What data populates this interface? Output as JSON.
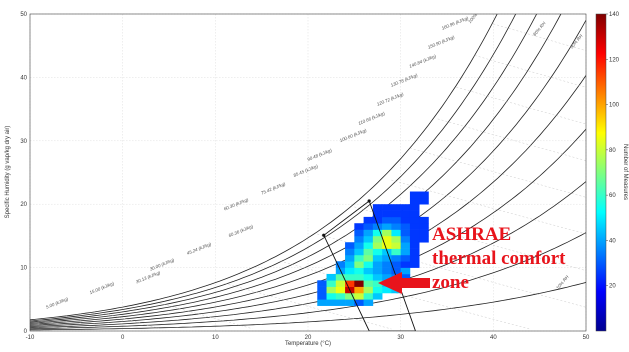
{
  "chart_data": {
    "type": "heatmap",
    "title": "",
    "xlabel": "Temperature (°C)",
    "ylabel": "Specific Humidity (g vap/kg dry air)",
    "xlim": [
      -10,
      50
    ],
    "ylim": [
      0,
      50
    ],
    "x_ticks": [
      "-10",
      "0",
      "10",
      "20",
      "30",
      "40",
      "50"
    ],
    "y_ticks": [
      "0",
      "10",
      "20",
      "30",
      "40",
      "50"
    ],
    "grid": true,
    "colorbar": {
      "label": "Number of Measures",
      "range": [
        0,
        140
      ],
      "ticks": [
        "20",
        "40",
        "60",
        "80",
        "100",
        "120",
        "140"
      ],
      "colormap": "jet"
    },
    "rh_curves_percent": [
      10,
      20,
      30,
      40,
      50,
      60,
      70,
      80,
      90,
      100
    ],
    "enthalpy_labels": [
      "5.00 (kJ/kg)",
      "15.00 (kJ/kg)",
      "30.13 (kJ/kg)",
      "30.00 (kJ/kg)",
      "45.24 (kJ/kg)",
      "60.30 (kJ/kg)",
      "60.36 (kJ/kg)",
      "75.42 (kJ/kg)",
      "85.45 (kJ/kg)",
      "90.48 (kJ/kg)",
      "100.60 (kJ/kg)",
      "110.66 (kJ/kg)",
      "120.72 (kJ/kg)",
      "130.78 (kJ/kg)",
      "140.84 (kJ/kg)",
      "150.90 (kJ/kg)",
      "160.96 (kJ/kg)"
    ],
    "rh_labels": [
      "100% RH",
      "80% RH",
      "50% RH",
      "10% RH"
    ],
    "bins": {
      "x_start": 21,
      "x_step": 1,
      "y_start": 4,
      "y_step": 1,
      "counts": [
        [
          40,
          40,
          40,
          40,
          30,
          40,
          0,
          0,
          0,
          0,
          0,
          0
        ],
        [
          30,
          55,
          60,
          70,
          80,
          60,
          45,
          0,
          0,
          0,
          0,
          0
        ],
        [
          30,
          75,
          85,
          130,
          100,
          75,
          55,
          50,
          45,
          0,
          0,
          0
        ],
        [
          30,
          60,
          80,
          115,
          150,
          65,
          60,
          45,
          40,
          35,
          0,
          0
        ],
        [
          0,
          45,
          65,
          60,
          60,
          55,
          45,
          40,
          35,
          30,
          0,
          0
        ],
        [
          0,
          0,
          40,
          50,
          55,
          45,
          40,
          35,
          30,
          40,
          0,
          0
        ],
        [
          0,
          0,
          35,
          45,
          70,
          55,
          40,
          35,
          30,
          25,
          25,
          0
        ],
        [
          0,
          0,
          0,
          40,
          60,
          70,
          45,
          40,
          35,
          30,
          25,
          0
        ],
        [
          0,
          0,
          0,
          35,
          45,
          65,
          55,
          45,
          60,
          40,
          25,
          0
        ],
        [
          0,
          0,
          0,
          30,
          40,
          55,
          75,
          85,
          80,
          40,
          25,
          0
        ],
        [
          0,
          0,
          0,
          0,
          35,
          45,
          70,
          85,
          75,
          35,
          25,
          25
        ],
        [
          0,
          0,
          0,
          0,
          30,
          40,
          55,
          75,
          50,
          30,
          25,
          25
        ],
        [
          0,
          0,
          0,
          0,
          25,
          30,
          35,
          40,
          35,
          30,
          25,
          25
        ],
        [
          0,
          0,
          0,
          0,
          0,
          25,
          25,
          30,
          30,
          25,
          25,
          25
        ],
        [
          0,
          0,
          0,
          0,
          0,
          0,
          25,
          25,
          25,
          25,
          25,
          0
        ],
        [
          0,
          0,
          0,
          0,
          0,
          0,
          25,
          25,
          25,
          25,
          25,
          0
        ],
        [
          0,
          0,
          0,
          0,
          0,
          0,
          0,
          0,
          0,
          0,
          25,
          25
        ],
        [
          0,
          0,
          0,
          0,
          0,
          0,
          0,
          0,
          0,
          0,
          25,
          25
        ]
      ]
    },
    "comfort_zone_polygon": [
      [
        21.7,
        15.1
      ],
      [
        26.6,
        20.5
      ],
      [
        31.6,
        0
      ],
      [
        26.6,
        0
      ]
    ],
    "annotation": {
      "lines": [
        "ASHRAE",
        "thermal comfort",
        "zone"
      ],
      "color": "#e8141c",
      "arrow_to": [
        26.5,
        7.8
      ]
    }
  }
}
